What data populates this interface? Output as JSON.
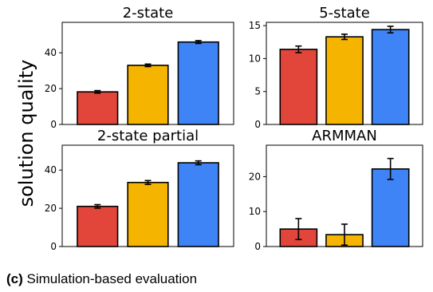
{
  "ylabel": "solution quality",
  "caption": {
    "label": "(c)",
    "text": " Simulation-based evaluation"
  },
  "colors": {
    "red": "#e2463b",
    "orange": "#f5b400",
    "blue": "#3f84f6"
  },
  "chart_data": [
    {
      "type": "bar",
      "title": "2-state",
      "categories": [
        "",
        "",
        ""
      ],
      "values": [
        18.2,
        33.0,
        46.0
      ],
      "errors": [
        0.7,
        0.7,
        0.8
      ],
      "ylim": [
        0,
        57
      ],
      "yticks": [
        0,
        20,
        40
      ]
    },
    {
      "type": "bar",
      "title": "5-state",
      "categories": [
        "",
        "",
        ""
      ],
      "values": [
        11.4,
        13.3,
        14.4
      ],
      "errors": [
        0.5,
        0.4,
        0.5
      ],
      "ylim": [
        0,
        15.5
      ],
      "yticks": [
        0,
        5,
        10,
        15
      ]
    },
    {
      "type": "bar",
      "title": "2-state partial",
      "categories": [
        "",
        "",
        ""
      ],
      "values": [
        21.0,
        33.5,
        43.8
      ],
      "errors": [
        0.9,
        1.0,
        1.0
      ],
      "ylim": [
        0,
        53
      ],
      "yticks": [
        0,
        20,
        40
      ]
    },
    {
      "type": "bar",
      "title": "ARMMAN",
      "categories": [
        "",
        "",
        ""
      ],
      "values": [
        5.0,
        3.4,
        22.2
      ],
      "errors": [
        3.0,
        3.0,
        3.0
      ],
      "ylim": [
        0,
        29
      ],
      "yticks": [
        0,
        10,
        20
      ]
    }
  ]
}
